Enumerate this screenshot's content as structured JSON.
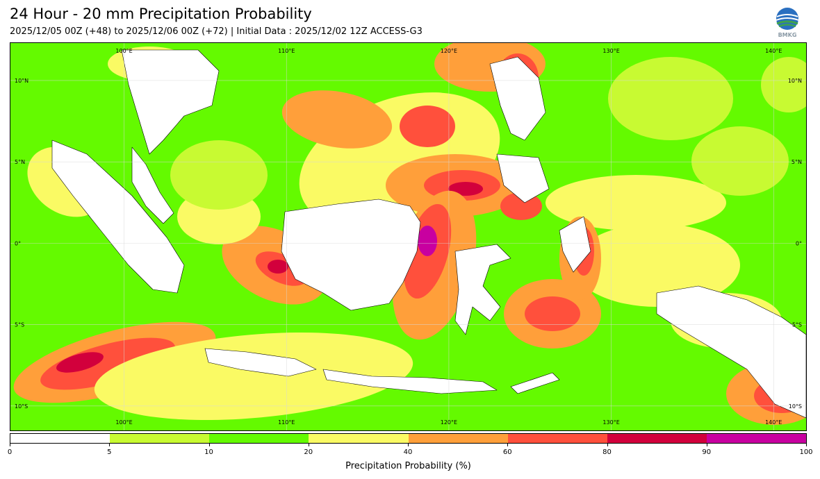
{
  "title": "24 Hour - 20 mm Precipitation Probability",
  "subtitle": "2025/12/05 00Z (+48) to 2025/12/06 00Z (+72) | Initial Data : 2025/12/02 12Z ACCESS-G3",
  "logo": {
    "text": "BMKG",
    "icon": "bmkg-globe-logo"
  },
  "map": {
    "lon_labels": [
      "100°E",
      "110°E",
      "120°E",
      "130°E",
      "140°E"
    ],
    "lat_labels": [
      "10°N",
      "5°N",
      "0°",
      "5°S",
      "10°S"
    ],
    "lon_range": [
      93,
      142
    ],
    "lat_range": [
      -11.5,
      12.3
    ],
    "grid_lons": [
      100,
      110,
      120,
      130,
      140
    ],
    "grid_lats": [
      10,
      5,
      0,
      -5,
      -10
    ],
    "land_color": "#ffffff",
    "coast_color": "#000000"
  },
  "colorbar": {
    "label": "Precipitation Probability (%)",
    "ticks": [
      "0",
      "5",
      "10",
      "20",
      "40",
      "60",
      "80",
      "90",
      "100"
    ],
    "colors": [
      "#ffffff",
      "#c8fa32",
      "#64fa00",
      "#fafa64",
      "#ff9f3a",
      "#ff503c",
      "#d2003c",
      "#c800a0"
    ]
  }
}
